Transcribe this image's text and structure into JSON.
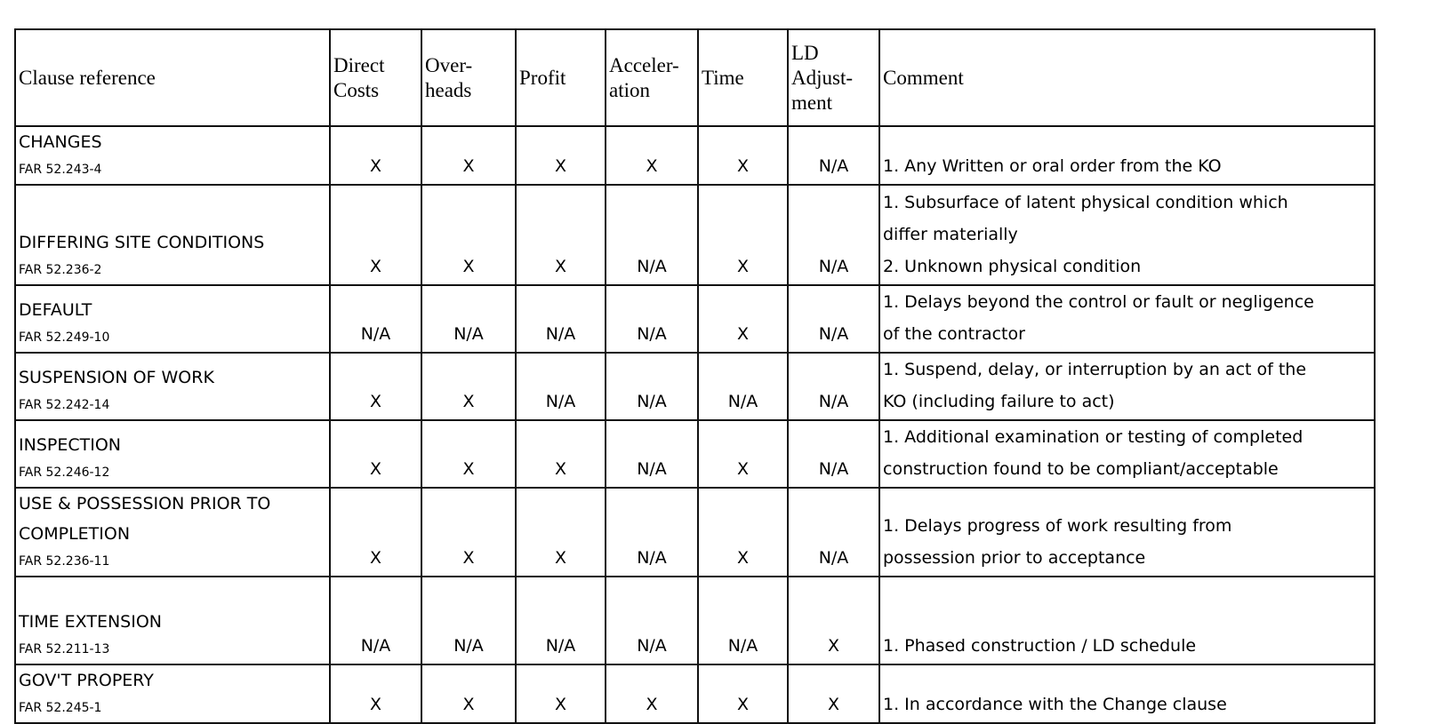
{
  "table": {
    "headers": [
      "Clause reference",
      "Direct Costs",
      "Over-heads",
      "Profit",
      "Acceler-ation",
      "Time",
      "LD Adjust-ment",
      "Comment"
    ],
    "rows": [
      {
        "name": [
          "CHANGES"
        ],
        "far": "FAR 52.243-4",
        "values": [
          "X",
          "X",
          "X",
          "X",
          "X",
          "N/A"
        ],
        "comment": [
          "1.  Any Written or oral order from the KO"
        ]
      },
      {
        "name": [
          "DIFFERING SITE CONDITIONS"
        ],
        "far": "FAR 52.236-2",
        "values": [
          "X",
          "X",
          "X",
          "N/A",
          "X",
          "N/A"
        ],
        "comment": [
          "1.  Subsurface of latent physical condition which",
          "differ materially",
          "2.  Unknown physical condition"
        ]
      },
      {
        "name": [
          "DEFAULT"
        ],
        "far": "FAR 52.249-10",
        "values": [
          "N/A",
          "N/A",
          "N/A",
          "N/A",
          "X",
          "N/A"
        ],
        "comment": [
          "1.  Delays beyond the control or fault or negligence",
          "of the contractor"
        ]
      },
      {
        "name": [
          "SUSPENSION OF WORK"
        ],
        "far": "FAR 52.242-14",
        "values": [
          "X",
          "X",
          "N/A",
          "N/A",
          "N/A",
          "N/A"
        ],
        "comment": [
          "1.  Suspend, delay, or interruption by an act of the",
          "KO (including failure to act)"
        ]
      },
      {
        "name": [
          "INSPECTION"
        ],
        "far": "FAR 52.246-12",
        "values": [
          "X",
          "X",
          "X",
          "N/A",
          "X",
          "N/A"
        ],
        "comment": [
          "1.  Additional examination or testing of completed",
          "construction found to be compliant/acceptable"
        ]
      },
      {
        "name": [
          "USE & POSSESSION PRIOR TO",
          "COMPLETION"
        ],
        "far": "FAR 52.236-11",
        "values": [
          "X",
          "X",
          "X",
          "N/A",
          "X",
          "N/A"
        ],
        "comment": [
          "1.  Delays progress of work resulting from",
          "possession prior to acceptance"
        ]
      },
      {
        "name": [
          "TIME EXTENSION"
        ],
        "far": "FAR 52.211-13",
        "values": [
          "N/A",
          "N/A",
          "N/A",
          "N/A",
          "N/A",
          "X"
        ],
        "comment": [
          "1.  Phased construction / LD schedule"
        ]
      },
      {
        "name": [
          "GOV'T PROPERY"
        ],
        "far": "FAR 52.245-1",
        "values": [
          "X",
          "X",
          "X",
          "X",
          "X",
          "X"
        ],
        "comment": [
          "1.  In accordance with the Change clause"
        ]
      }
    ]
  }
}
